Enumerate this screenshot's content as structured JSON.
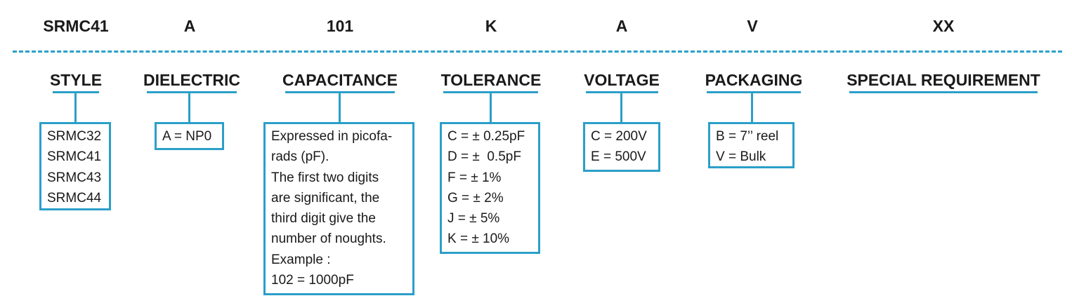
{
  "codes": {
    "style": "SRMC41",
    "dielectric": "A",
    "capacitance": "101",
    "tolerance": "K",
    "voltage": "A",
    "packaging": "V",
    "special": "XX"
  },
  "headings": {
    "style": "STYLE",
    "dielectric": "DIELECTRIC",
    "capacitance": "CAPACITANCE",
    "tolerance": "TOLERANCE",
    "voltage": "VOLTAGE",
    "packaging": "PACKAGING",
    "special": "SPECIAL REQUIREMENT"
  },
  "boxes": {
    "style": [
      "SRMC32",
      "SRMC41",
      "SRMC43",
      "SRMC44"
    ],
    "dielectric": [
      "A = NP0"
    ],
    "capacitance": [
      "Expressed in picofa-",
      "rads (pF).",
      "The first two digits",
      "are significant, the",
      "third digit give the",
      "number of noughts.",
      "Example :",
      "102 = 1000pF"
    ],
    "tolerance": [
      "C = ± 0.25pF",
      "D = ±  0.5pF",
      "F = ± 1%",
      "G = ± 2%",
      "J = ± 5%",
      "K = ± 10%"
    ],
    "voltage": [
      "C = 200V",
      "E = 500V"
    ],
    "packaging": [
      "B = 7’’ reel",
      "V = Bulk"
    ]
  },
  "colors": {
    "accent": "#2b9fc9",
    "text": "#1a1a1a"
  }
}
